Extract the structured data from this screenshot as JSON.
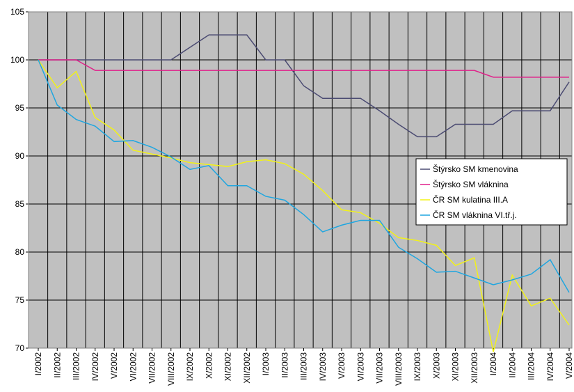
{
  "chart_data": {
    "type": "line",
    "categories": [
      "I/2002",
      "II/2002",
      "III/2002",
      "IV/2002",
      "V/2002",
      "VI/2002",
      "VII/2002",
      "VIII/2002",
      "IX/2002",
      "X/2002",
      "XI/2002",
      "XII/2002",
      "I/2003",
      "II/2003",
      "III/2003",
      "IV/2003",
      "V/2003",
      "VI/2003",
      "VII/2003",
      "VIII/2003",
      "IX/2003",
      "X/2003",
      "XI/2003",
      "XII/2003",
      "I/2004",
      "II/2004",
      "III/2004",
      "IV/2004",
      "V/2004"
    ],
    "series": [
      {
        "name": "Štýrsko SM kmenovina",
        "color": "#4b4b72",
        "values": [
          100,
          100,
          100,
          100,
          100,
          100,
          100,
          100,
          101.3,
          102.6,
          102.6,
          102.6,
          100,
          100,
          97.3,
          96,
          96,
          96,
          94.7,
          93.3,
          92,
          92,
          93.3,
          93.3,
          93.3,
          94.7,
          94.7,
          94.7,
          97.7
        ]
      },
      {
        "name": "Štýrsko SM vláknina",
        "color": "#e0218a",
        "values": [
          100,
          100,
          100,
          98.9,
          98.9,
          98.9,
          98.9,
          98.9,
          98.9,
          98.9,
          98.9,
          98.9,
          98.9,
          98.9,
          98.9,
          98.9,
          98.9,
          98.9,
          98.9,
          98.9,
          98.9,
          98.9,
          98.9,
          98.9,
          98.2,
          98.2,
          98.2,
          98.2,
          98.2
        ]
      },
      {
        "name": "ČR SM kulatina III.A",
        "color": "#f2f216",
        "values": [
          100,
          97.1,
          98.8,
          94.0,
          92.7,
          90.6,
          90.2,
          89.8,
          89.3,
          89.1,
          88.9,
          89.4,
          89.6,
          89.2,
          88.1,
          86.4,
          84.4,
          84.1,
          83.0,
          81.5,
          81.2,
          80.7,
          78.6,
          79.4,
          69.6,
          77.6,
          74.4,
          75.2,
          72.4
        ]
      },
      {
        "name": "ČR SM vláknina VI.tř.j.",
        "color": "#1fa6e0",
        "values": [
          100,
          95.3,
          93.8,
          93.1,
          91.5,
          91.6,
          90.9,
          89.9,
          88.6,
          89.0,
          86.9,
          86.9,
          85.8,
          85.4,
          83.9,
          82.1,
          82.8,
          83.3,
          83.3,
          80.5,
          79.3,
          77.9,
          78.0,
          77.3,
          76.6,
          77.1,
          77.7,
          79.2,
          75.8
        ]
      }
    ],
    "ylim": [
      70,
      105
    ],
    "yticks": [
      70,
      75,
      80,
      85,
      90,
      95,
      100,
      105
    ],
    "grid": true,
    "legend": "right"
  }
}
